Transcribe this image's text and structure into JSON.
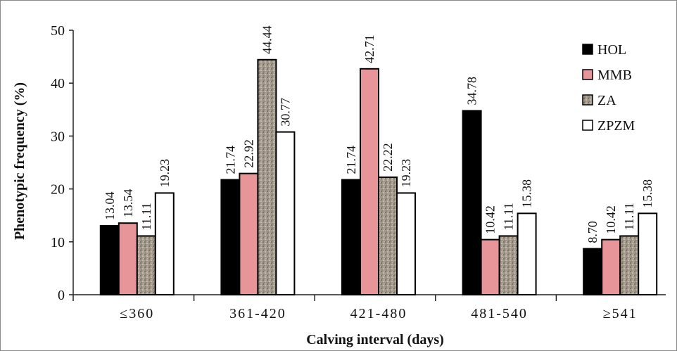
{
  "chart_data": {
    "type": "bar",
    "title": "",
    "xlabel": "Calving interval (days)",
    "ylabel": "Phenotypic frequency (%)",
    "ylim": [
      0,
      50
    ],
    "yticks": [
      "0",
      "10",
      "20",
      "30",
      "40",
      "50"
    ],
    "categories": [
      "≤360",
      "361-420",
      "421-480",
      "481-540",
      "≥541"
    ],
    "legend_position": "top-right",
    "grid": false,
    "series": [
      {
        "name": "HOL",
        "color": "#000000",
        "pattern": "solid",
        "values": [
          13.04,
          21.74,
          21.74,
          34.78,
          8.7
        ],
        "labels": [
          "13.04",
          "21.74",
          "21.74",
          "34.78",
          "8.70"
        ]
      },
      {
        "name": "MMB",
        "color": "#e8959a",
        "pattern": "solid",
        "values": [
          13.54,
          22.92,
          42.71,
          10.42,
          10.42
        ],
        "labels": [
          "13.54",
          "22.92",
          "42.71",
          "10.42",
          "10.42"
        ]
      },
      {
        "name": "ZA",
        "color": "#a39a8c",
        "pattern": "speckled",
        "values": [
          11.11,
          44.44,
          22.22,
          11.11,
          11.11
        ],
        "labels": [
          "11.11",
          "44.44",
          "22.22",
          "11.11",
          "11.11"
        ]
      },
      {
        "name": "ZPZM",
        "color": "#ffffff",
        "pattern": "solid",
        "values": [
          19.23,
          30.77,
          19.23,
          15.38,
          15.38
        ],
        "labels": [
          "19.23",
          "30.77",
          "19.23",
          "15.38",
          "15.38"
        ]
      }
    ]
  }
}
